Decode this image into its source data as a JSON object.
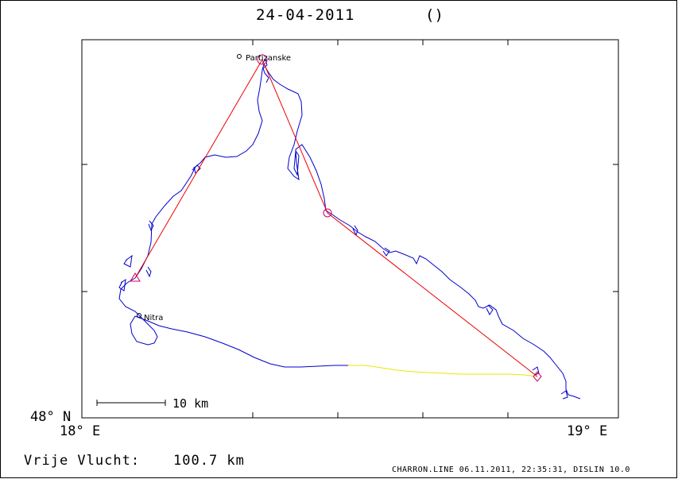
{
  "title": {
    "date": "24-04-2011",
    "paren": "()"
  },
  "axes": {
    "lat_label": "48° N",
    "lon_left": "18° E",
    "lon_right": "19° E"
  },
  "scale_bar": {
    "label": "10 km"
  },
  "cities": [
    {
      "name": "Partizanske"
    },
    {
      "name": "Nitra"
    }
  ],
  "footer": {
    "distance_label": "Vrije Vlucht:",
    "distance_value": "100.7 km",
    "info": "CHARRON.LINE 06.11.2011, 22:35:31, DISLIN 10.0"
  },
  "colors": {
    "track": "#0000cc",
    "track_final": "#e8e800",
    "triangle": "#ee0000",
    "markers": "#cc0066"
  },
  "icons": [
    "start-triangle-icon",
    "turnpoint-circle-icon",
    "finish-diamond-icon",
    "city-dot-icon"
  ]
}
